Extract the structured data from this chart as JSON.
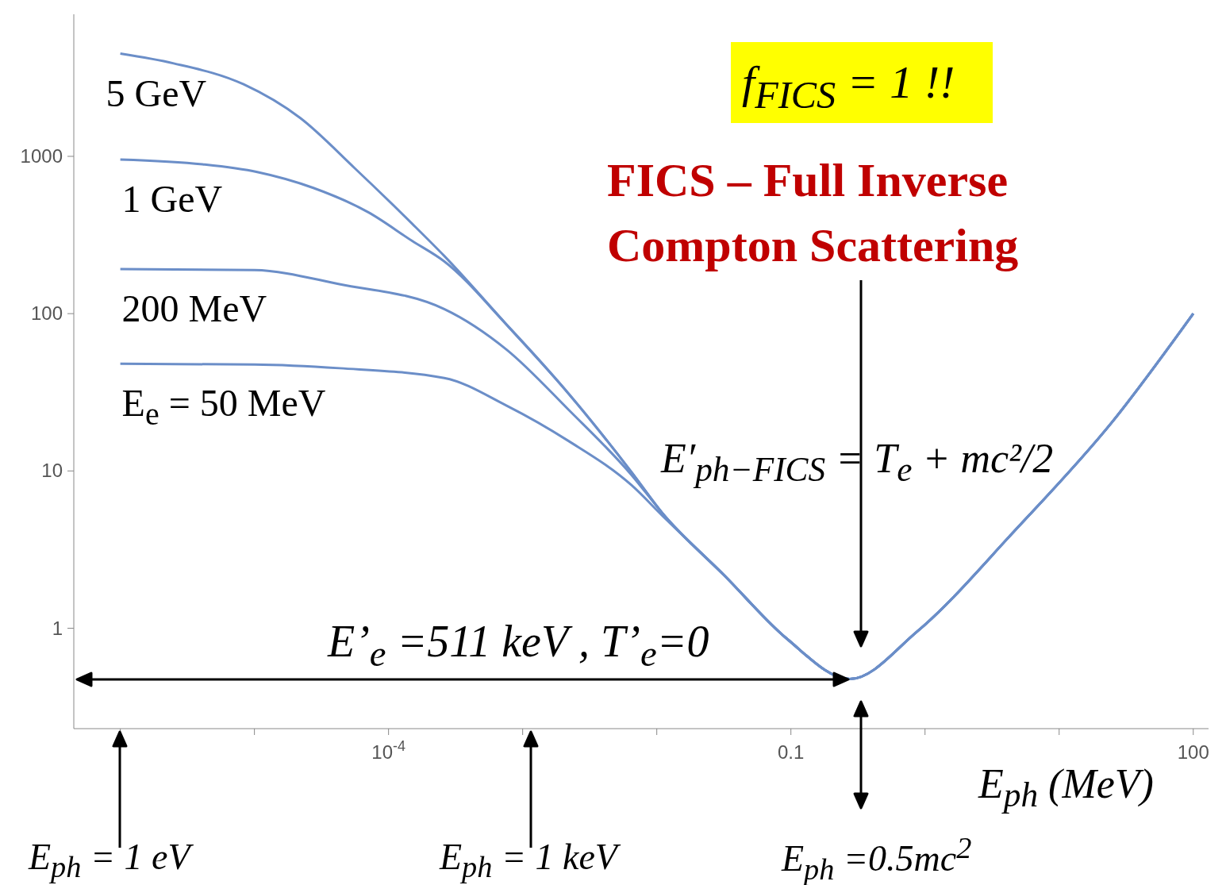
{
  "chart_data": {
    "type": "line",
    "xlabel": "E$_{ph}$ (MeV)",
    "log": "xy",
    "xlim": [
      4.5e-07,
      130
    ],
    "ylim": [
      0.23,
      8000
    ],
    "xticks": [
      {
        "value": 1e-06,
        "label": null
      },
      {
        "value": 1e-05,
        "label": null
      },
      {
        "value": 0.0001,
        "label": "10$^{-4}$"
      },
      {
        "value": 0.001,
        "label": null
      },
      {
        "value": 0.01,
        "label": null
      },
      0.1,
      {
        "value": 1,
        "label": null
      },
      {
        "value": 10,
        "label": null
      },
      100
    ],
    "yticks": [
      1,
      10,
      100,
      1000
    ],
    "series": [
      {
        "name": "5 GeV",
        "color": "#6b8ec8",
        "x": [
          1e-06,
          2.5e-06,
          8.3e-06,
          2.2e-05,
          5.6e-05,
          0.00015,
          0.00026,
          0.00076,
          0.0022,
          0.0065,
          0.011,
          0.032,
          0.093,
          0.275,
          0.87,
          4.7,
          25,
          100
        ],
        "values": [
          4500,
          3900,
          2870,
          1750,
          840,
          373,
          233,
          85,
          31,
          9.8,
          5.4,
          2.16,
          0.86,
          0.475,
          0.95,
          4.2,
          20.6,
          100
        ]
      },
      {
        "name": "1 GeV",
        "color": "#6b8ec8",
        "x": [
          1e-06,
          4.1e-06,
          1.05e-05,
          2.75e-05,
          7.1e-05,
          0.00015,
          0.00026,
          0.00076,
          0.0022,
          0.0065,
          0.011,
          0.032,
          0.093,
          0.275,
          0.87,
          4.7,
          25,
          100
        ],
        "values": [
          955,
          890,
          795,
          630,
          440,
          290,
          215,
          85,
          31,
          9.8,
          5.4,
          2.16,
          0.86,
          0.475,
          0.95,
          4.2,
          20.6,
          100
        ]
      },
      {
        "name": "200 MeV",
        "color": "#6b8ec8",
        "x": [
          1e-06,
          1e-05,
          4.3e-05,
          0.00026,
          0.00076,
          0.0022,
          0.0065,
          0.011,
          0.032,
          0.093,
          0.275,
          0.87,
          4.7,
          25,
          100
        ],
        "values": [
          192,
          189,
          154,
          107,
          59,
          24.5,
          9.4,
          5.4,
          2.16,
          0.86,
          0.475,
          0.95,
          4.2,
          20.6,
          100
        ]
      },
      {
        "name": "E$_{e}$ = 50 MeV",
        "color": "#6b8ec8",
        "x": [
          1e-06,
          1e-05,
          4.3e-05,
          0.00026,
          0.00076,
          0.0022,
          0.0065,
          0.011,
          0.032,
          0.093,
          0.275,
          0.87,
          4.7,
          25,
          100
        ],
        "values": [
          48,
          47.5,
          45,
          39,
          26,
          15.5,
          8.1,
          5.2,
          2.16,
          0.86,
          0.475,
          0.95,
          4.2,
          20.6,
          100
        ]
      }
    ],
    "annotations": [
      "f$_{FICS}$ = 1 !!",
      "FICS – Full Inverse Compton Scattering",
      "E′$_{ph−FICS}$ = T$_{e}$ + mc²/2",
      "E’$_{e}$ =511 keV , T’$_{e}$=0",
      "E$_{ph}$ = 1 eV",
      "E$_{ph}$ = 1 keV",
      "E$_{ph}$ =0.5mc$^{2}$"
    ]
  }
}
